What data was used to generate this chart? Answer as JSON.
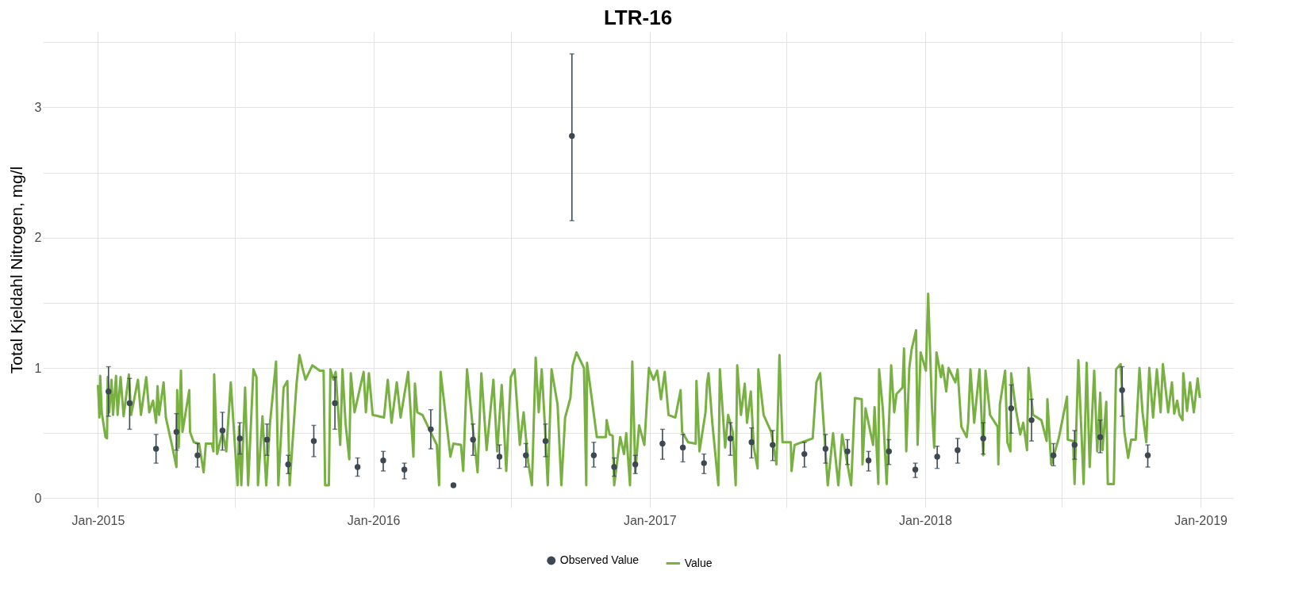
{
  "chart_data": {
    "type": "line",
    "title": "LTR-16",
    "ylabel": "Total Kjeldahl Nitrogen, mg/l",
    "grid": true,
    "legend": "bottom",
    "xlim": [
      "2014-10-20",
      "2019-02-13"
    ],
    "ylim": [
      -0.07,
      3.58
    ],
    "xticks": [
      {
        "value": "2015-01-01",
        "label": "Jan-2015"
      },
      {
        "value": "2015-07-01",
        "label": null
      },
      {
        "value": "2016-01-01",
        "label": "Jan-2016"
      },
      {
        "value": "2016-07-01",
        "label": null
      },
      {
        "value": "2017-01-01",
        "label": "Jan-2017"
      },
      {
        "value": "2017-07-01",
        "label": null
      },
      {
        "value": "2018-01-01",
        "label": "Jan-2018"
      },
      {
        "value": "2018-07-01",
        "label": null
      },
      {
        "value": "2019-01-01",
        "label": "Jan-2019"
      }
    ],
    "yticks": [
      0,
      {
        "value": 0.5,
        "label": null
      },
      1,
      {
        "value": 1.5,
        "label": null
      },
      2,
      {
        "value": 2.5,
        "label": null
      },
      3,
      {
        "value": 3.5,
        "label": null
      }
    ],
    "series": [
      {
        "name": "Observed Value",
        "type": "scatter",
        "marker": "circle",
        "color": "#3d4952",
        "x": [
          "2015-01-15",
          "2015-02-12",
          "2015-03-19",
          "2015-04-15",
          "2015-05-13",
          "2015-06-15",
          "2015-07-08",
          "2015-08-13",
          "2015-09-10",
          "2015-10-14",
          "2015-11-11",
          "2015-12-11",
          "2016-01-14",
          "2016-02-11",
          "2016-03-17",
          "2016-04-16",
          "2016-05-12",
          "2016-06-16",
          "2016-07-21",
          "2016-08-16",
          "2016-09-20",
          "2016-10-19",
          "2016-11-15",
          "2016-12-13",
          "2017-01-18",
          "2017-02-14",
          "2017-03-14",
          "2017-04-18",
          "2017-05-16",
          "2017-06-13",
          "2017-07-25",
          "2017-08-22",
          "2017-09-20",
          "2017-10-18",
          "2017-11-14",
          "2017-12-19",
          "2018-01-17",
          "2018-02-13",
          "2018-03-19",
          "2018-04-25",
          "2018-05-22",
          "2018-06-20",
          "2018-07-18",
          "2018-08-21",
          "2018-09-19",
          "2018-10-23"
        ],
        "values": [
          0.82,
          0.73,
          0.38,
          0.51,
          0.33,
          0.52,
          0.46,
          0.45,
          0.26,
          0.44,
          0.73,
          0.24,
          0.29,
          0.22,
          0.53,
          0.1,
          0.45,
          0.32,
          0.33,
          0.44,
          2.78,
          0.33,
          0.24,
          0.26,
          0.42,
          0.39,
          0.27,
          0.46,
          0.43,
          0.41,
          0.34,
          0.38,
          0.36,
          0.29,
          0.36,
          0.22,
          0.32,
          0.37,
          0.46,
          0.69,
          0.6,
          0.33,
          0.41,
          0.47,
          0.83,
          0.33
        ],
        "errors": [
          [
            0.63,
            1.01
          ],
          [
            0.53,
            0.92
          ],
          [
            0.27,
            0.49
          ],
          [
            0.37,
            0.65
          ],
          [
            0.24,
            0.42
          ],
          [
            0.37,
            0.66
          ],
          [
            0.34,
            0.58
          ],
          [
            0.33,
            0.57
          ],
          [
            0.19,
            0.33
          ],
          [
            0.32,
            0.56
          ],
          [
            0.53,
            0.93
          ],
          [
            0.17,
            0.31
          ],
          [
            0.21,
            0.36
          ],
          [
            0.15,
            0.27
          ],
          [
            0.38,
            0.68
          ],
          null,
          [
            0.33,
            0.57
          ],
          [
            0.23,
            0.41
          ],
          [
            0.24,
            0.42
          ],
          [
            0.32,
            0.57
          ],
          [
            2.13,
            3.41
          ],
          [
            0.24,
            0.43
          ],
          [
            0.17,
            0.31
          ],
          [
            0.19,
            0.33
          ],
          [
            0.3,
            0.53
          ],
          [
            0.28,
            0.49
          ],
          [
            0.19,
            0.34
          ],
          [
            0.33,
            0.58
          ],
          [
            0.31,
            0.54
          ],
          [
            0.29,
            0.52
          ],
          [
            0.24,
            0.43
          ],
          [
            0.27,
            0.49
          ],
          [
            0.26,
            0.45
          ],
          [
            0.21,
            0.36
          ],
          [
            0.26,
            0.45
          ],
          [
            0.16,
            0.27
          ],
          [
            0.23,
            0.4
          ],
          [
            0.27,
            0.46
          ],
          [
            0.34,
            0.58
          ],
          [
            0.5,
            0.87
          ],
          [
            0.44,
            0.76
          ],
          [
            0.25,
            0.42
          ],
          [
            0.3,
            0.52
          ],
          [
            0.35,
            0.6
          ],
          [
            0.63,
            1.01
          ],
          [
            0.24,
            0.41
          ]
        ]
      },
      {
        "name": "Value",
        "line_style": "solid",
        "color": "#78b142",
        "x": [
          "2015-01-01",
          "2015-01-03",
          "2015-01-04",
          "2015-01-06",
          "2015-01-11",
          "2015-01-13",
          "2015-01-14",
          "2015-01-16",
          "2015-01-19",
          "2015-01-21",
          "2015-01-25",
          "2015-01-27",
          "2015-01-31",
          "2015-02-04",
          "2015-02-11",
          "2015-02-14",
          "2015-02-23",
          "2015-02-27",
          "2015-03-06",
          "2015-03-10",
          "2015-03-15",
          "2015-03-19",
          "2015-03-21",
          "2015-03-23",
          "2015-03-29",
          "2015-04-01",
          "2015-04-09",
          "2015-04-15",
          "2015-04-16",
          "2015-04-18",
          "2015-04-21",
          "2015-04-23",
          "2015-05-02",
          "2015-05-03",
          "2015-05-08",
          "2015-05-15",
          "2015-05-21",
          "2015-05-24",
          "2015-06-01",
          "2015-06-03",
          "2015-06-04",
          "2015-06-08",
          "2015-06-15",
          "2015-06-20",
          "2015-06-26",
          "2015-07-01",
          "2015-07-05",
          "2015-07-07",
          "2015-07-10",
          "2015-07-15",
          "2015-07-19",
          "2015-07-26",
          "2015-07-30",
          "2015-08-01",
          "2015-08-07",
          "2015-08-12",
          "2015-08-17",
          "2015-08-25",
          "2015-08-28",
          "2015-09-04",
          "2015-09-09",
          "2015-09-12",
          "2015-09-21",
          "2015-09-25",
          "2015-09-29",
          "2015-10-03",
          "2015-10-12",
          "2015-10-22",
          "2015-10-27",
          "2015-10-29",
          "2015-11-03",
          "2015-11-05",
          "2015-11-09",
          "2015-11-12",
          "2015-11-18",
          "2015-11-21",
          "2015-11-25",
          "2015-11-30",
          "2015-12-02",
          "2015-12-07",
          "2015-12-19",
          "2015-12-22",
          "2015-12-26",
          "2015-12-31",
          "2016-01-15",
          "2016-01-20",
          "2016-01-25",
          "2016-02-01",
          "2016-02-06",
          "2016-02-16",
          "2016-02-23",
          "2016-02-25",
          "2016-02-28",
          "2016-03-06",
          "2016-03-25",
          "2016-03-28",
          "2016-03-30",
          "2016-04-12",
          "2016-04-16",
          "2016-04-26",
          "2016-04-29",
          "2016-05-04",
          "2016-05-11",
          "2016-05-18",
          "2016-05-23",
          "2016-05-30",
          "2016-06-08",
          "2016-06-13",
          "2016-06-19",
          "2016-06-25",
          "2016-07-01",
          "2016-07-06",
          "2016-07-13",
          "2016-07-18",
          "2016-07-24",
          "2016-07-29",
          "2016-08-03",
          "2016-08-07",
          "2016-08-11",
          "2016-08-15",
          "2016-08-19",
          "2016-08-24",
          "2016-09-01",
          "2016-09-06",
          "2016-09-11",
          "2016-09-18",
          "2016-09-21",
          "2016-09-26",
          "2016-10-01",
          "2016-10-06",
          "2016-10-09",
          "2016-10-10",
          "2016-10-16",
          "2016-10-23",
          "2016-11-04",
          "2016-11-05",
          "2016-11-09",
          "2016-11-13",
          "2016-11-15",
          "2016-11-23",
          "2016-11-28",
          "2016-12-01",
          "2016-12-06",
          "2016-12-09",
          "2016-12-13",
          "2016-12-18",
          "2016-12-25",
          "2016-12-31",
          "2017-01-06",
          "2017-01-11",
          "2017-01-16",
          "2017-01-21",
          "2017-01-26",
          "2017-02-04",
          "2017-02-11",
          "2017-02-13",
          "2017-02-21",
          "2017-03-03",
          "2017-03-04",
          "2017-03-08",
          "2017-03-16",
          "2017-03-18",
          "2017-03-20",
          "2017-03-25",
          "2017-04-02",
          "2017-04-04",
          "2017-04-11",
          "2017-04-15",
          "2017-04-21",
          "2017-04-25",
          "2017-04-27",
          "2017-05-02",
          "2017-05-07",
          "2017-05-10",
          "2017-05-15",
          "2017-05-19",
          "2017-05-24",
          "2017-05-25",
          "2017-06-01",
          "2017-06-11",
          "2017-06-18",
          "2017-06-22",
          "2017-06-26",
          "2017-07-07",
          "2017-07-08",
          "2017-07-12",
          "2017-08-05",
          "2017-08-10",
          "2017-08-15",
          "2017-08-20",
          "2017-08-25",
          "2017-09-01",
          "2017-09-08",
          "2017-09-13",
          "2017-09-25",
          "2017-09-30",
          "2017-10-09",
          "2017-10-10",
          "2017-10-14",
          "2017-10-19",
          "2017-10-24",
          "2017-10-26",
          "2017-10-31",
          "2017-11-01",
          "2017-11-06",
          "2017-11-11",
          "2017-11-17",
          "2017-11-21",
          "2017-11-24",
          "2017-12-02",
          "2017-12-04",
          "2017-12-07",
          "2017-12-11",
          "2017-12-14",
          "2017-12-20",
          "2017-12-22",
          "2017-12-26",
          "2018-01-02",
          "2018-01-05",
          "2018-01-10",
          "2018-01-13",
          "2018-01-16",
          "2018-01-22",
          "2018-01-24",
          "2018-01-29",
          "2018-02-01",
          "2018-02-10",
          "2018-02-13",
          "2018-02-18",
          "2018-02-25",
          "2018-02-27",
          "2018-03-02",
          "2018-03-07",
          "2018-03-14",
          "2018-03-19",
          "2018-03-22",
          "2018-03-28",
          "2018-04-07",
          "2018-04-08",
          "2018-04-10",
          "2018-04-17",
          "2018-04-20",
          "2018-04-24",
          "2018-04-25",
          "2018-05-01",
          "2018-05-07",
          "2018-05-11",
          "2018-05-16",
          "2018-05-18",
          "2018-05-24",
          "2018-06-04",
          "2018-06-11",
          "2018-06-12",
          "2018-06-17",
          "2018-06-27",
          "2018-07-08",
          "2018-07-09",
          "2018-07-16",
          "2018-07-18",
          "2018-07-23",
          "2018-07-30",
          "2018-08-03",
          "2018-08-07",
          "2018-08-13",
          "2018-08-17",
          "2018-08-21",
          "2018-08-24",
          "2018-08-29",
          "2018-08-31",
          "2018-09-08",
          "2018-09-11",
          "2018-09-17",
          "2018-09-22",
          "2018-09-27",
          "2018-10-01",
          "2018-10-07",
          "2018-10-12",
          "2018-10-16",
          "2018-10-21",
          "2018-10-25",
          "2018-10-30",
          "2018-11-04",
          "2018-11-09",
          "2018-11-12",
          "2018-11-19",
          "2018-11-24",
          "2018-11-27",
          "2018-12-01",
          "2018-12-04",
          "2018-12-08",
          "2018-12-09",
          "2018-12-14",
          "2018-12-18",
          "2018-12-23",
          "2018-12-28",
          "2018-12-31"
        ],
        "values": [
          0.87,
          0.62,
          0.94,
          0.66,
          0.47,
          0.46,
          0.93,
          0.66,
          0.91,
          0.64,
          0.94,
          0.64,
          0.93,
          0.63,
          0.95,
          0.64,
          0.91,
          0.64,
          0.93,
          0.66,
          0.75,
          0.58,
          0.86,
          0.64,
          0.89,
          0.62,
          0.41,
          0.24,
          0.83,
          0.39,
          0.98,
          0.51,
          0.83,
          0.51,
          0.43,
          0.42,
          0.2,
          0.42,
          0.42,
          0.36,
          0.95,
          0.34,
          0.51,
          0.36,
          0.89,
          0.45,
          0.1,
          0.55,
          0.1,
          0.85,
          0.1,
          0.99,
          0.93,
          0.1,
          0.63,
          0.1,
          0.58,
          1.05,
          0.1,
          0.85,
          0.9,
          0.1,
          0.87,
          1.1,
          1.0,
          0.91,
          1.02,
          0.98,
          0.98,
          0.1,
          0.1,
          0.99,
          0.91,
          0.97,
          0.41,
          0.99,
          0.58,
          0.3,
          0.96,
          0.66,
          0.97,
          0.66,
          0.96,
          0.64,
          0.62,
          0.91,
          0.58,
          0.89,
          0.62,
          0.97,
          0.32,
          0.88,
          0.66,
          0.64,
          0.41,
          0.1,
          0.97,
          0.32,
          0.42,
          0.41,
          0.21,
          0.99,
          0.58,
          0.2,
          0.96,
          0.37,
          0.91,
          0.36,
          0.87,
          0.21,
          0.93,
          0.99,
          0.41,
          0.66,
          0.28,
          0.1,
          1.08,
          0.66,
          0.99,
          0.58,
          0.1,
          0.99,
          0.72,
          0.1,
          0.62,
          0.77,
          1.02,
          1.12,
          1.06,
          1.0,
          0.1,
          1.04,
          0.78,
          0.47,
          0.47,
          0.6,
          0.49,
          0.48,
          0.1,
          0.47,
          0.34,
          0.5,
          0.1,
          1.05,
          0.2,
          0.56,
          0.41,
          1.0,
          0.91,
          0.98,
          0.76,
          0.97,
          0.64,
          0.62,
          0.83,
          0.51,
          0.43,
          0.42,
          0.9,
          0.36,
          0.66,
          0.88,
          0.96,
          0.58,
          0.1,
          0.99,
          0.39,
          0.64,
          0.51,
          0.1,
          1.02,
          0.64,
          0.88,
          0.58,
          0.82,
          0.39,
          0.23,
          0.99,
          0.64,
          0.51,
          0.26,
          1.1,
          0.43,
          0.43,
          0.21,
          0.41,
          0.46,
          0.89,
          0.96,
          0.53,
          0.1,
          0.5,
          0.1,
          0.49,
          0.1,
          0.77,
          0.76,
          0.26,
          0.69,
          0.55,
          0.41,
          0.7,
          0.11,
          0.99,
          0.68,
          0.11,
          1.02,
          0.66,
          0.8,
          0.85,
          1.15,
          0.36,
          1.0,
          1.14,
          1.29,
          0.41,
          1.12,
          0.98,
          1.57,
          0.7,
          0.39,
          1.12,
          0.93,
          1.02,
          0.82,
          1.0,
          0.89,
          0.99,
          0.55,
          0.47,
          0.58,
          0.99,
          0.58,
          0.99,
          0.33,
          0.98,
          0.64,
          0.55,
          0.26,
          0.72,
          0.98,
          0.43,
          0.36,
          0.96,
          0.69,
          0.49,
          0.58,
          0.37,
          1.0,
          0.64,
          0.6,
          0.44,
          0.76,
          0.26,
          0.46,
          0.78,
          0.45,
          0.44,
          0.11,
          1.06,
          0.11,
          1.04,
          0.24,
          0.98,
          0.36,
          0.81,
          0.37,
          0.74,
          0.11,
          0.11,
          0.99,
          1.03,
          0.51,
          0.31,
          0.45,
          0.45,
          1.0,
          0.66,
          0.43,
          1.0,
          0.62,
          0.99,
          0.66,
          1.03,
          0.66,
          0.89,
          0.65,
          0.75,
          0.64,
          0.6,
          0.96,
          0.67,
          0.89,
          0.66,
          0.92,
          0.77
        ]
      }
    ]
  }
}
